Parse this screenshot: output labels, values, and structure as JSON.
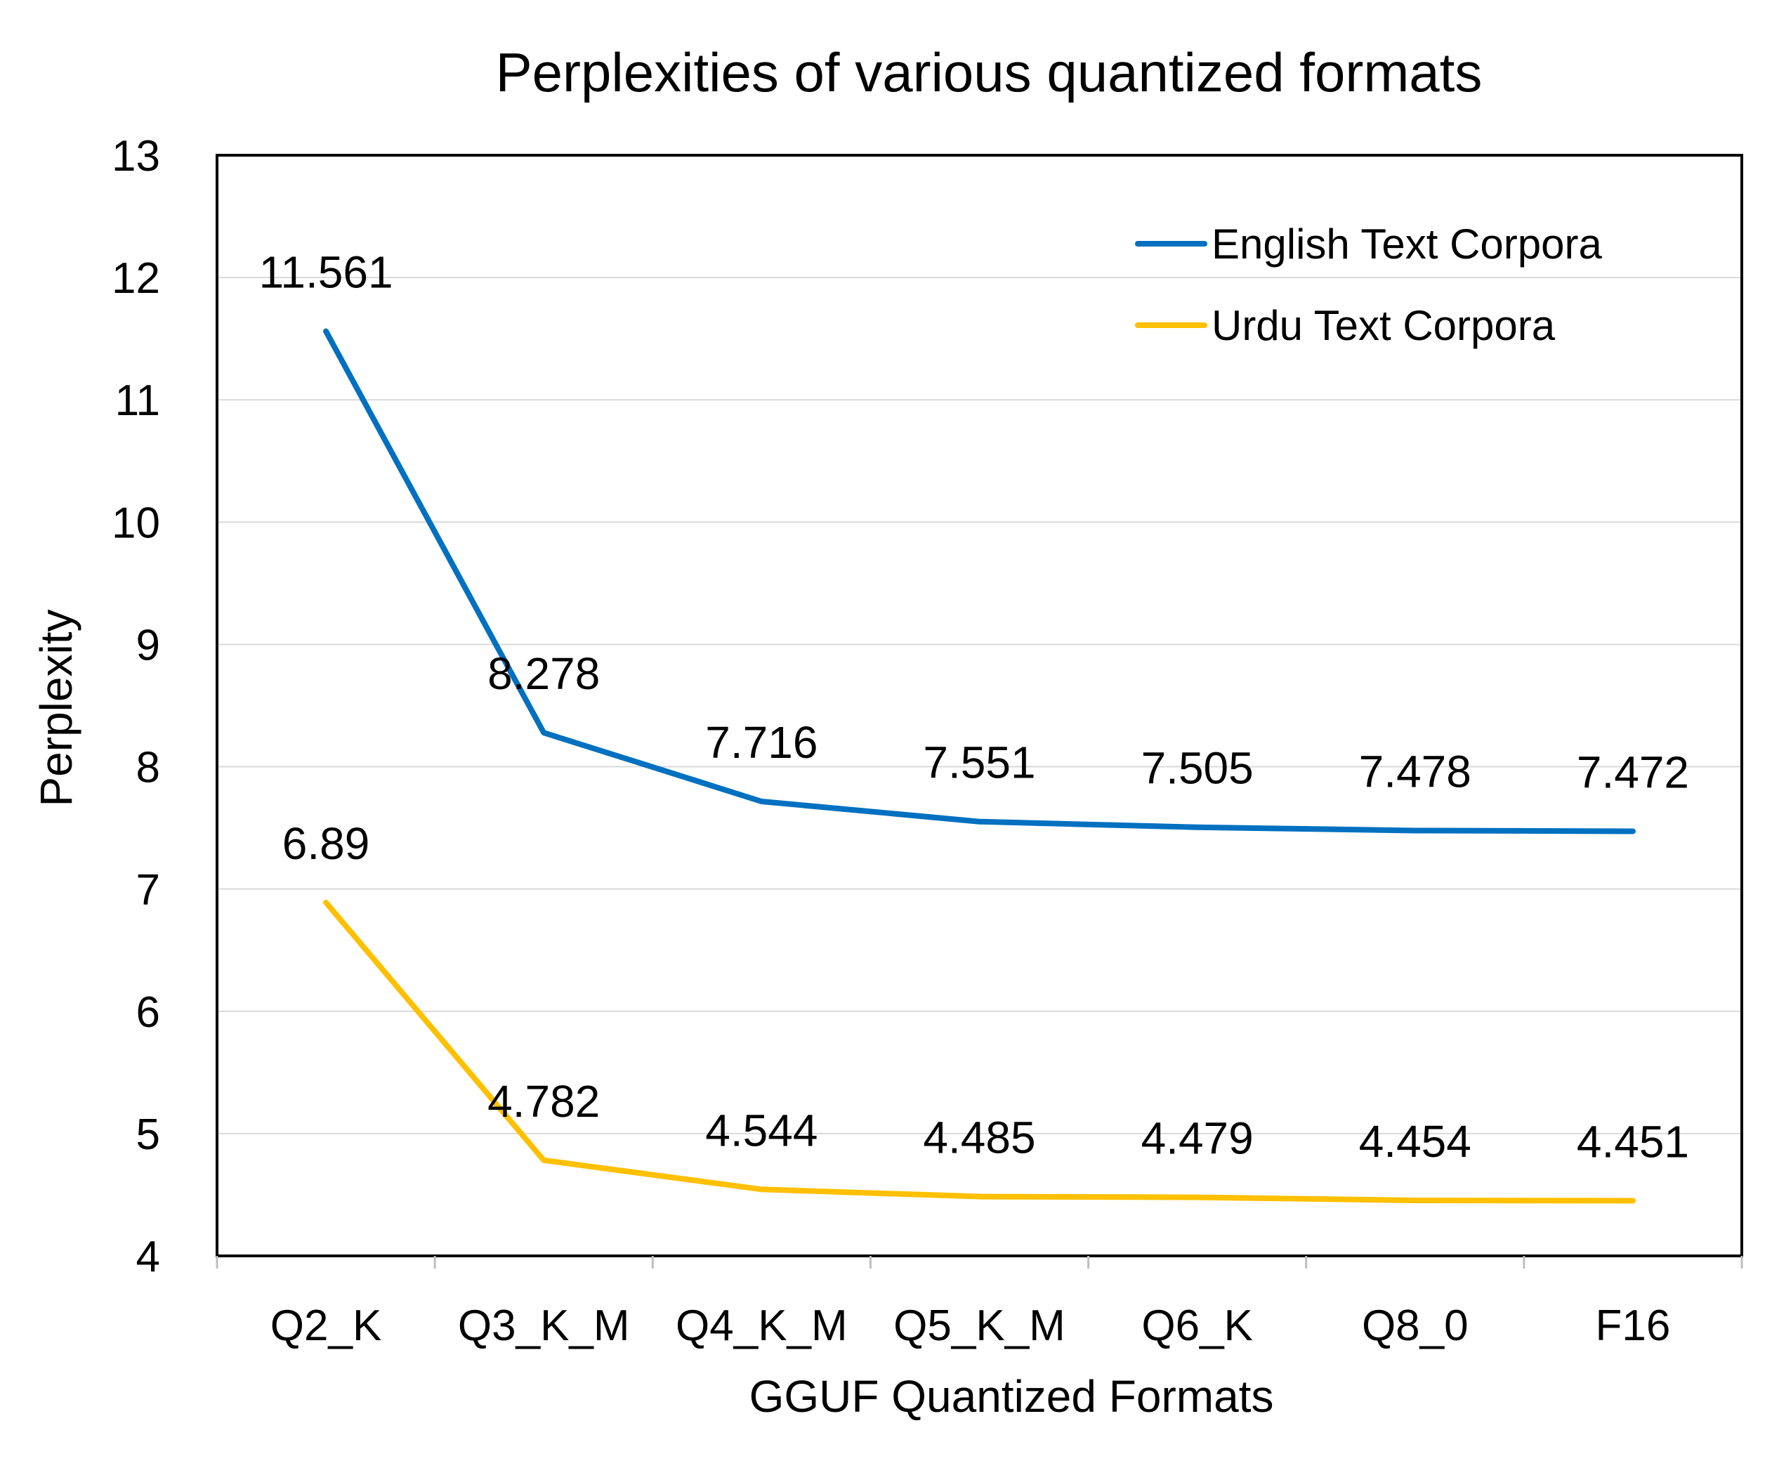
{
  "chart_data": {
    "type": "line",
    "title": "Perplexities of various quantized formats",
    "xlabel": "GGUF Quantized Formats",
    "ylabel": "Perplexity",
    "categories": [
      "Q2_K",
      "Q3_K_M",
      "Q4_K_M",
      "Q5_K_M",
      "Q6_K",
      "Q8_0",
      "F16"
    ],
    "ylim": [
      4,
      13
    ],
    "yticks": [
      "4",
      "5",
      "6",
      "7",
      "8",
      "9",
      "10",
      "11",
      "12",
      "13"
    ],
    "grid": true,
    "legend_position": "top-right",
    "series": [
      {
        "name": "English Text Corpora",
        "color": "#0070C0",
        "values": [
          11.561,
          8.278,
          7.716,
          7.551,
          7.505,
          7.478,
          7.472
        ],
        "labels": [
          "11.561",
          "8.278",
          "7.716",
          "7.551",
          "7.505",
          "7.478",
          "7.472"
        ]
      },
      {
        "name": "Urdu Text Corpora",
        "color": "#FFC000",
        "values": [
          6.89,
          4.782,
          4.544,
          4.485,
          4.479,
          4.454,
          4.451
        ],
        "labels": [
          "6.89",
          "4.782",
          "4.544",
          "4.485",
          "4.479",
          "4.454",
          "4.451"
        ]
      }
    ]
  }
}
